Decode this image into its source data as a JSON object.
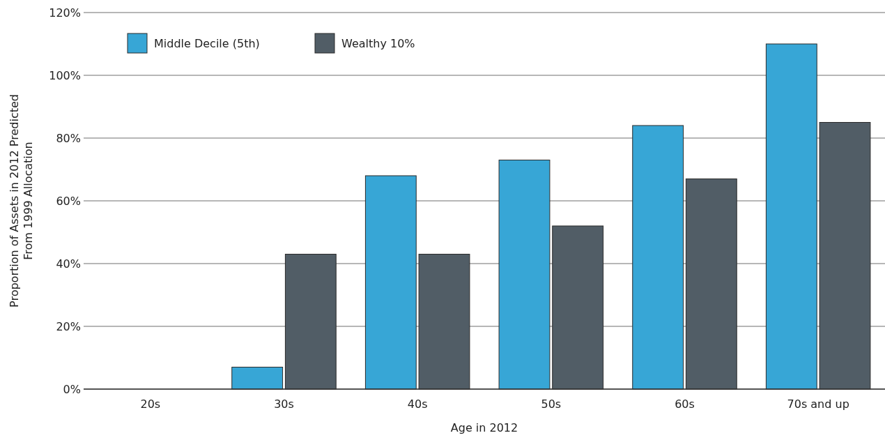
{
  "chart_data": {
    "type": "bar",
    "xlabel": "Age in 2012",
    "ylabel": "Proportion of Assets in 2012 Predicted From 1999 Allocation",
    "categories": [
      "20s",
      "30s",
      "40s",
      "50s",
      "60s",
      "70s and up"
    ],
    "series": [
      {
        "name": "Middle Decile (5th)",
        "color": "#37a6d6",
        "values": [
          0,
          7,
          68,
          73,
          84,
          110
        ]
      },
      {
        "name": "Wealthy 10%",
        "color": "#515d66",
        "values": [
          0,
          43,
          43,
          52,
          67,
          85
        ]
      }
    ],
    "ylim": [
      0,
      120
    ],
    "yticks": [
      {
        "value": 0,
        "label": "0%"
      },
      {
        "value": 20,
        "label": "20%"
      },
      {
        "value": 40,
        "label": "40%"
      },
      {
        "value": 60,
        "label": "60%"
      },
      {
        "value": 80,
        "label": "80%"
      },
      {
        "value": 100,
        "label": "100%"
      },
      {
        "value": 120,
        "label": "120%"
      }
    ],
    "grid": "y",
    "legend": "top left"
  }
}
